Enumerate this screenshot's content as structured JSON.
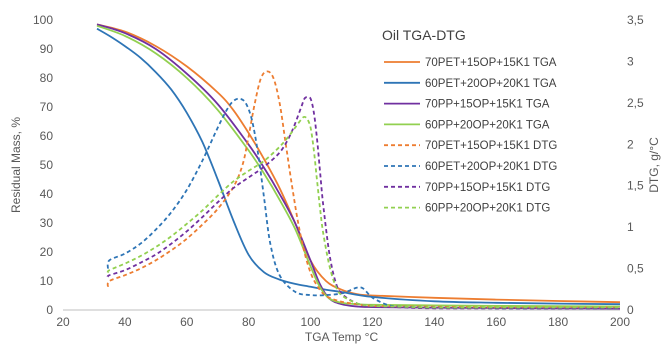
{
  "chart_data": {
    "type": "line",
    "title": "Oil TGA-DTG",
    "xlabel": "TGA Temp °C",
    "ylabel": "Residual Mass, %",
    "y2label": "DTG, g/°C",
    "xlim": [
      20,
      200
    ],
    "ylim": [
      0,
      100
    ],
    "y2lim": [
      0,
      3.5
    ],
    "xticks": [
      "20",
      "40",
      "60",
      "80",
      "100",
      "120",
      "140",
      "160",
      "180",
      "200"
    ],
    "yticks": [
      "0",
      "10",
      "20",
      "30",
      "40",
      "50",
      "60",
      "70",
      "80",
      "90",
      "100"
    ],
    "y2ticks": [
      "0",
      "0,5",
      "1",
      "1,5",
      "2",
      "2,5",
      "3",
      "3,5"
    ],
    "grid": false,
    "legend_position": "top-right",
    "series": [
      {
        "name": "70PET+15OP+15K1 TGA",
        "axis": "left",
        "dashed": false,
        "color": "#ED7D31",
        "x": [
          31,
          40,
          50,
          60,
          70,
          75,
          80,
          85,
          90,
          95,
          100,
          105,
          110,
          115,
          120,
          140,
          160,
          180,
          200
        ],
        "y": [
          98.5,
          96,
          91,
          84,
          75,
          69,
          61,
          52,
          42,
          30,
          17,
          10,
          7,
          5.5,
          5,
          4.2,
          3.6,
          3.1,
          2.7
        ]
      },
      {
        "name": "60PET+20OP+20K1 TGA",
        "axis": "left",
        "dashed": false,
        "color": "#2E75B6",
        "x": [
          31,
          35,
          40,
          45,
          50,
          55,
          60,
          65,
          70,
          75,
          80,
          85,
          90,
          95,
          100,
          105,
          110,
          120,
          140,
          160,
          180,
          200
        ],
        "y": [
          97,
          94.5,
          91,
          87,
          82,
          76,
          68,
          58,
          45,
          31,
          19,
          13,
          10.5,
          9,
          8,
          7,
          6.2,
          4.5,
          3,
          2.5,
          2.2,
          2
        ]
      },
      {
        "name": "70PP+15OP+15K1 TGA",
        "axis": "left",
        "dashed": false,
        "color": "#7030A0",
        "x": [
          31,
          40,
          50,
          60,
          70,
          80,
          85,
          90,
          95,
          100,
          103,
          106,
          110,
          115,
          120,
          140,
          160,
          180,
          200
        ],
        "y": [
          98.5,
          95.5,
          90,
          81.5,
          71,
          57,
          49,
          40,
          30,
          17,
          9,
          4,
          2,
          1.2,
          1,
          0.8,
          0.7,
          0.6,
          0.5
        ]
      },
      {
        "name": "60PP+20OP+20K1 TGA",
        "axis": "left",
        "dashed": false,
        "color": "#92D050",
        "x": [
          31,
          40,
          50,
          60,
          70,
          80,
          85,
          90,
          95,
          100,
          103,
          106,
          110,
          115,
          120,
          140,
          160,
          180,
          200
        ],
        "y": [
          98,
          94.5,
          88.5,
          80,
          69,
          55,
          47,
          38,
          28,
          15,
          8,
          4,
          2.5,
          2,
          1.8,
          1.6,
          1.4,
          1.3,
          1.2
        ]
      },
      {
        "name": "70PET+15OP+15K1 DTG",
        "axis": "right",
        "dashed": true,
        "color": "#ED7D31",
        "x": [
          34.5,
          35,
          40,
          45,
          50,
          55,
          60,
          65,
          70,
          75,
          78,
          80,
          82,
          84,
          86,
          88,
          90,
          92,
          94,
          96,
          98,
          100,
          102,
          104,
          106,
          110,
          115,
          120,
          140,
          160,
          180,
          200
        ],
        "y": [
          0.28,
          0.35,
          0.42,
          0.5,
          0.6,
          0.72,
          0.86,
          1.03,
          1.22,
          1.48,
          1.75,
          2.1,
          2.5,
          2.8,
          2.88,
          2.8,
          2.5,
          2.0,
          1.5,
          1.05,
          0.7,
          0.45,
          0.3,
          0.2,
          0.15,
          0.1,
          0.07,
          0.05,
          0.04,
          0.03,
          0.03,
          0.03
        ]
      },
      {
        "name": "60PET+20OP+20K1 DTG",
        "axis": "right",
        "dashed": true,
        "color": "#2E75B6",
        "x": [
          34.5,
          35,
          40,
          45,
          50,
          55,
          60,
          65,
          70,
          73,
          75,
          77,
          79,
          81,
          83,
          85,
          87,
          90,
          95,
          100,
          105,
          110,
          113,
          115,
          117,
          120,
          125,
          130,
          140,
          160,
          180,
          200
        ],
        "y": [
          0.5,
          0.6,
          0.68,
          0.8,
          0.97,
          1.18,
          1.45,
          1.8,
          2.2,
          2.42,
          2.52,
          2.55,
          2.5,
          2.3,
          1.9,
          1.35,
          0.8,
          0.42,
          0.22,
          0.18,
          0.18,
          0.2,
          0.24,
          0.27,
          0.26,
          0.15,
          0.06,
          0.04,
          0.03,
          0.02,
          0.02,
          0.02
        ]
      },
      {
        "name": "70PP+15OP+15K1 DTG",
        "axis": "right",
        "dashed": true,
        "color": "#7030A0",
        "x": [
          34.5,
          35,
          40,
          45,
          50,
          55,
          60,
          65,
          70,
          75,
          80,
          85,
          90,
          93,
          95,
          97,
          98,
          99,
          100,
          101,
          102,
          103,
          104,
          106,
          108,
          110,
          115,
          120,
          130,
          140,
          160,
          180,
          200
        ],
        "y": [
          0.4,
          0.42,
          0.48,
          0.57,
          0.67,
          0.8,
          0.95,
          1.12,
          1.3,
          1.47,
          1.6,
          1.73,
          1.9,
          2.08,
          2.25,
          2.45,
          2.55,
          2.57,
          2.55,
          2.4,
          2.1,
          1.7,
          1.3,
          0.7,
          0.35,
          0.2,
          0.08,
          0.05,
          0.03,
          0.02,
          0.02,
          0.02,
          0.02
        ]
      },
      {
        "name": "60PP+20OP+20K1 DTG",
        "axis": "right",
        "dashed": true,
        "color": "#92D050",
        "x": [
          34.5,
          35,
          40,
          45,
          50,
          55,
          60,
          65,
          70,
          75,
          80,
          85,
          90,
          93,
          95,
          97,
          98,
          99,
          100,
          101,
          102,
          103,
          104,
          106,
          108,
          110,
          115,
          120,
          130,
          140,
          160,
          180,
          200
        ],
        "y": [
          0.45,
          0.48,
          0.56,
          0.65,
          0.76,
          0.89,
          1.04,
          1.2,
          1.38,
          1.55,
          1.68,
          1.8,
          1.97,
          2.1,
          2.2,
          2.3,
          2.33,
          2.3,
          2.2,
          1.95,
          1.6,
          1.25,
          0.95,
          0.55,
          0.3,
          0.18,
          0.08,
          0.05,
          0.04,
          0.03,
          0.03,
          0.03,
          0.03
        ]
      }
    ]
  }
}
